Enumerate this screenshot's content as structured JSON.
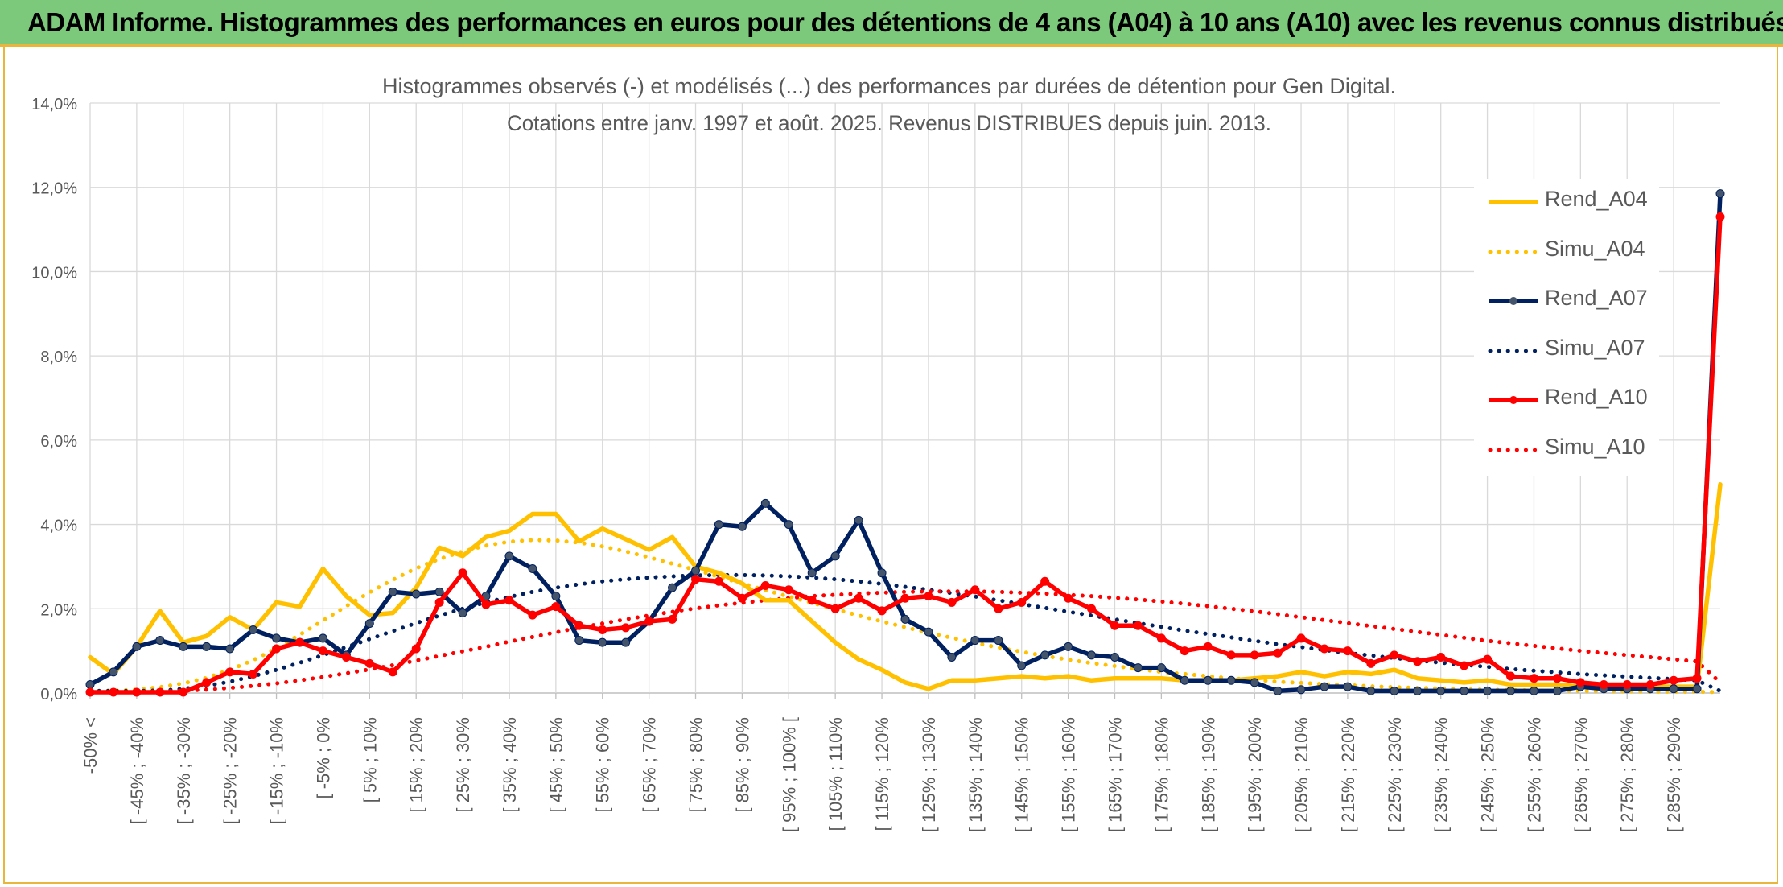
{
  "banner": {
    "title": "ADAM Informe. Histogrammes des performances en euros pour des détentions de 4 ans (A04) à 10 ans (A10) avec les revenus connus distribués"
  },
  "colors": {
    "banner_bg": "#7cc97b",
    "frame_border": "#e9b53a",
    "A04": "#ffc000",
    "A07": "#002060",
    "A10": "#ff0000"
  },
  "chart_data": {
    "type": "line",
    "title_lines": [
      "Histogrammes observés (-) et modélisés (...) des performances par durées de détention pour Gen Digital.",
      "Cotations entre janv. 1997 et août. 2025. Revenus DISTRIBUES depuis juin. 2013."
    ],
    "ylim": [
      0,
      14
    ],
    "y_ticks": [
      "0,0%",
      "2,0%",
      "4,0%",
      "6,0%",
      "8,0%",
      "10,0%",
      "12,0%",
      "14,0%"
    ],
    "x_labels": [
      "-50% <",
      "[ -45% ; -40%",
      "[ -35% ; -30%",
      "[ -25% ; -20%",
      "[ -15% ; -10%",
      "[ -5% ; 0%",
      "[ 5% ; 10%",
      "[ 15% ; 20%",
      "[ 25% ; 30%",
      "[ 35% ; 40%",
      "[ 45% ; 50%",
      "[ 55% ; 60%",
      "[ 65% ; 70%",
      "[ 75% ; 80%",
      "[ 85% ; 90%",
      "[ 95% ; 100% [",
      "[ 105% ; 110%",
      "[ 115% ; 120%",
      "[ 125% ; 130%",
      "[ 135% ; 140%",
      "[ 145% ; 150%",
      "[ 155% ; 160%",
      "[ 165% ; 170%",
      "[ 175% ; 180%",
      "[ 185% ; 190%",
      "[ 195% ; 200%",
      "[ 205% ; 210%",
      "[ 215% ; 220%",
      "[ 225% ; 230%",
      "[ 235% ; 240%",
      "[ 245% ; 250%",
      "[ 255% ; 260%",
      "[ 265% ; 270%",
      "[ 275% ; 280%",
      "[ 285% ; 290%"
    ],
    "grid": true,
    "legend_position": "right",
    "series": [
      {
        "name": "Rend_A04",
        "style": "solid",
        "markers": false,
        "color": "#ffc000",
        "values": [
          0.85,
          0.45,
          1.1,
          1.95,
          1.2,
          1.35,
          1.8,
          1.5,
          2.15,
          2.05,
          2.95,
          2.3,
          1.85,
          1.9,
          2.5,
          3.45,
          3.25,
          3.7,
          3.85,
          4.25,
          4.25,
          3.6,
          3.9,
          3.65,
          3.4,
          3.7,
          3.0,
          2.85,
          2.6,
          2.2,
          2.2,
          1.7,
          1.2,
          0.8,
          0.55,
          0.25,
          0.1,
          0.3,
          0.3,
          0.35,
          0.4,
          0.35,
          0.4,
          0.3,
          0.35,
          0.35,
          0.35,
          0.3,
          0.3,
          0.3,
          0.35,
          0.4,
          0.5,
          0.4,
          0.5,
          0.45,
          0.55,
          0.35,
          0.3,
          0.25,
          0.3,
          0.2,
          0.2,
          0.2,
          0.15,
          0.15,
          0.15,
          0.15,
          0.15,
          0.15,
          4.95
        ]
      },
      {
        "name": "Simu_A04",
        "style": "dotted",
        "markers": false,
        "color": "#ffc000",
        "values": [
          0.05,
          0.06,
          0.08,
          0.14,
          0.23,
          0.36,
          0.55,
          0.78,
          1.06,
          1.38,
          1.72,
          2.06,
          2.39,
          2.69,
          2.96,
          3.18,
          3.36,
          3.5,
          3.59,
          3.63,
          3.62,
          3.57,
          3.48,
          3.36,
          3.22,
          3.07,
          2.92,
          2.76,
          2.6,
          2.44,
          2.29,
          2.14,
          1.99,
          1.84,
          1.7,
          1.56,
          1.43,
          1.31,
          1.19,
          1.08,
          0.98,
          0.88,
          0.79,
          0.71,
          0.64,
          0.57,
          0.5,
          0.45,
          0.4,
          0.35,
          0.31,
          0.27,
          0.24,
          0.21,
          0.19,
          0.16,
          0.14,
          0.12,
          0.11,
          0.09,
          0.08,
          0.07,
          0.06,
          0.05,
          0.05,
          0.04,
          0.04,
          0.03,
          0.03,
          0.03,
          0.02
        ]
      },
      {
        "name": "Rend_A07",
        "style": "solid",
        "markers": true,
        "color": "#002060",
        "values": [
          0.2,
          0.5,
          1.1,
          1.25,
          1.1,
          1.1,
          1.05,
          1.5,
          1.3,
          1.2,
          1.3,
          0.9,
          1.65,
          2.4,
          2.35,
          2.4,
          1.9,
          2.3,
          3.25,
          2.95,
          2.3,
          1.25,
          1.2,
          1.2,
          1.7,
          2.5,
          2.9,
          4.0,
          3.95,
          4.5,
          4.0,
          2.85,
          3.25,
          4.1,
          2.85,
          1.75,
          1.45,
          0.85,
          1.25,
          1.25,
          0.65,
          0.9,
          1.1,
          0.9,
          0.85,
          0.6,
          0.6,
          0.3,
          0.3,
          0.3,
          0.25,
          0.05,
          0.08,
          0.15,
          0.15,
          0.05,
          0.05,
          0.05,
          0.05,
          0.05,
          0.05,
          0.05,
          0.05,
          0.05,
          0.15,
          0.1,
          0.1,
          0.1,
          0.1,
          0.1,
          11.85
        ]
      },
      {
        "name": "Simu_A07",
        "style": "dotted",
        "markers": false,
        "color": "#002060",
        "values": [
          0.05,
          0.05,
          0.05,
          0.06,
          0.1,
          0.17,
          0.27,
          0.4,
          0.55,
          0.72,
          0.9,
          1.09,
          1.28,
          1.47,
          1.66,
          1.84,
          2.0,
          2.15,
          2.28,
          2.4,
          2.5,
          2.58,
          2.65,
          2.7,
          2.74,
          2.77,
          2.79,
          2.8,
          2.8,
          2.79,
          2.77,
          2.74,
          2.7,
          2.65,
          2.59,
          2.52,
          2.45,
          2.37,
          2.29,
          2.2,
          2.11,
          2.02,
          1.93,
          1.84,
          1.75,
          1.66,
          1.57,
          1.48,
          1.4,
          1.32,
          1.24,
          1.16,
          1.09,
          1.02,
          0.95,
          0.89,
          0.83,
          0.77,
          0.72,
          0.67,
          0.62,
          0.57,
          0.53,
          0.49,
          0.45,
          0.42,
          0.39,
          0.36,
          0.33,
          0.3,
          0.05
        ]
      },
      {
        "name": "Rend_A10",
        "style": "solid",
        "markers": true,
        "color": "#ff0000",
        "values": [
          0.02,
          0.02,
          0.02,
          0.02,
          0.02,
          0.25,
          0.5,
          0.45,
          1.05,
          1.2,
          1.0,
          0.85,
          0.7,
          0.5,
          1.05,
          2.15,
          2.85,
          2.1,
          2.2,
          1.85,
          2.05,
          1.6,
          1.5,
          1.55,
          1.7,
          1.75,
          2.7,
          2.65,
          2.25,
          2.55,
          2.45,
          2.2,
          2.0,
          2.25,
          1.95,
          2.25,
          2.3,
          2.15,
          2.45,
          2.0,
          2.15,
          2.65,
          2.25,
          2.0,
          1.6,
          1.6,
          1.3,
          1.0,
          1.1,
          0.9,
          0.9,
          0.95,
          1.3,
          1.05,
          1.0,
          0.7,
          0.9,
          0.75,
          0.85,
          0.65,
          0.8,
          0.4,
          0.35,
          0.35,
          0.25,
          0.2,
          0.2,
          0.2,
          0.3,
          0.35,
          11.3
        ]
      },
      {
        "name": "Simu_A10",
        "style": "dotted",
        "markers": false,
        "color": "#ff0000",
        "values": [
          0.02,
          0.02,
          0.03,
          0.04,
          0.06,
          0.08,
          0.12,
          0.17,
          0.23,
          0.3,
          0.38,
          0.47,
          0.56,
          0.66,
          0.77,
          0.88,
          0.99,
          1.1,
          1.22,
          1.33,
          1.44,
          1.55,
          1.65,
          1.75,
          1.84,
          1.93,
          2.01,
          2.08,
          2.14,
          2.2,
          2.25,
          2.3,
          2.33,
          2.36,
          2.38,
          2.4,
          2.41,
          2.41,
          2.41,
          2.4,
          2.38,
          2.36,
          2.33,
          2.3,
          2.26,
          2.22,
          2.17,
          2.12,
          2.06,
          2.0,
          1.94,
          1.87,
          1.8,
          1.73,
          1.66,
          1.59,
          1.52,
          1.45,
          1.38,
          1.31,
          1.24,
          1.18,
          1.12,
          1.06,
          1.0,
          0.95,
          0.9,
          0.85,
          0.8,
          0.75,
          0.25
        ]
      }
    ]
  }
}
